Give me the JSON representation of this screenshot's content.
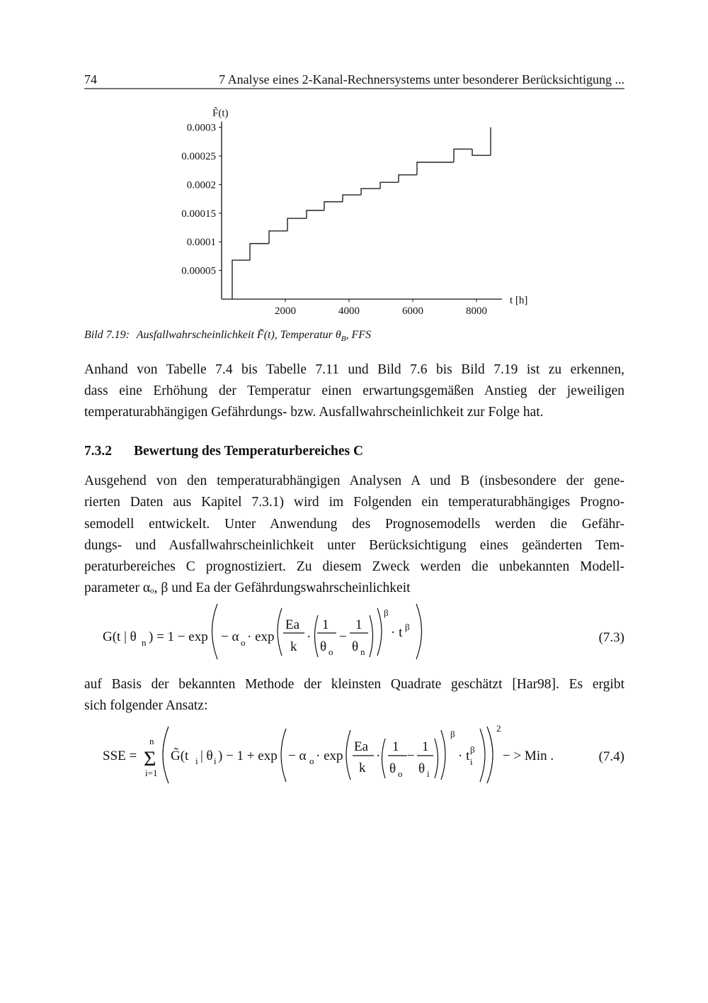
{
  "header": {
    "page_number": "74",
    "title": "7 Analyse eines 2-Kanal-Rechnersystems unter besonderer Berücksichtigung ..."
  },
  "chart_data": {
    "type": "step",
    "y_label": "F̃(t)",
    "x_label": "t [h]",
    "x": [
      333,
      889,
      1489,
      2067,
      2667,
      3222,
      3800,
      4378,
      4978,
      5556,
      6133,
      7289,
      7867,
      8444
    ],
    "values": [
      6.8e-05,
      9.7e-05,
      0.000119,
      0.000141,
      0.000155,
      0.00017,
      0.000182,
      0.000193,
      0.000204,
      0.000217,
      0.000239,
      0.000262,
      0.000251,
      0.0003
    ],
    "color": "#222222",
    "xlim": [
      0,
      8800
    ],
    "ylim": [
      0,
      0.00031
    ],
    "xticks": [
      2000,
      4000,
      6000,
      8000
    ],
    "yticks": [
      5e-05,
      0.0001,
      0.00015,
      0.0002,
      0.00025,
      0.0003
    ]
  },
  "caption": {
    "label": "Bild 7.19:",
    "text": "Ausfallwahrscheinlichkeit F̃(t), Temperatur θ",
    "subscript": "B",
    "tail": ", FFS"
  },
  "paragraphs": [
    [
      "Anhand von Tabelle 7.4 bis Tabelle 7.11 und Bild 7.6 bis Bild 7.19 ist zu erkennen,",
      "dass eine Erhöhung der Temperatur einen erwartungsgemäßen Anstieg der jeweiligen",
      "temperaturabhängigen Gefährdungs- bzw. Ausfallwahrscheinlichkeit zur Folge hat."
    ],
    [
      "Ausgehend von den temperaturabhängigen Analysen A und B (insbesondere der gene-",
      "rierten Daten aus Kapitel 7.3.1) wird im Folgenden ein temperaturabhängiges Progno-",
      "semodell entwickelt. Unter Anwendung des Prognosemodells werden die Gefähr-",
      "dungs- und Ausfallwahrscheinlichkeit unter Berücksichtigung eines geänderten Tem-",
      "peraturbereiches C prognostiziert. Zu diesem Zweck werden die unbekannten Modell-",
      "parameter αₒ, β und Ea der Gefährdungswahrscheinlichkeit"
    ],
    [
      "auf Basis der bekannten Methode der kleinsten Quadrate geschätzt [Har98]. Es ergibt",
      "sich folgender Ansatz:"
    ]
  ],
  "section": {
    "number": "7.3.2",
    "title": "Bewertung des Temperaturbereiches C"
  },
  "equations": [
    {
      "tokens": [
        "G(t | θ",
        "n",
        ") = 1 − exp",
        "− α",
        "o",
        "· exp",
        "Ea",
        "k",
        "·",
        "1",
        "θ",
        "o",
        "−",
        "1",
        "θ",
        "n",
        "β",
        "· t",
        "β"
      ],
      "number": "(7.3)"
    },
    {
      "tokens": [
        "SSE =",
        "n",
        "Σ",
        "i=1",
        "G̃(t",
        "i",
        "| θ",
        "i",
        ") − 1 + exp",
        "− α",
        "o",
        "· exp",
        "Ea",
        "k",
        "·",
        "1",
        "θ",
        "o",
        "−",
        "1",
        "θ",
        "i",
        "β",
        "· t",
        "i",
        "β",
        "2",
        "− > Min ."
      ],
      "number": "(7.4)"
    }
  ]
}
